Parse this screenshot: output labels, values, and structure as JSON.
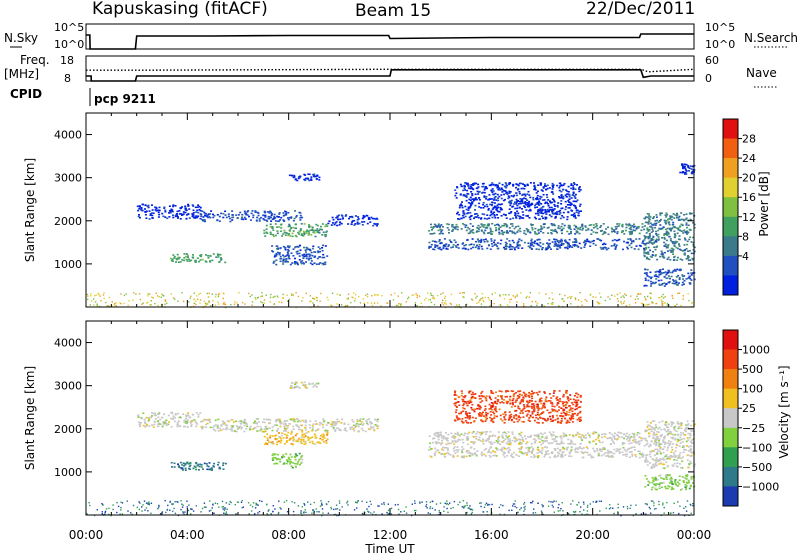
{
  "header": {
    "station": "Kapuskasing (fitACF)",
    "beam": "Beam 15",
    "date": "22/Dec/2011"
  },
  "chart_data": [
    {
      "type": "line",
      "panel": "noise",
      "left_label": "N.Sky",
      "right_label": "N.Search",
      "left_ticks": [
        "10^5",
        "10^0"
      ],
      "right_ticks": [
        "10^5",
        "10^0"
      ],
      "series": [
        {
          "name": "N.Sky",
          "x": [
            0.0,
            0.15,
            0.16,
            0.35,
            0.4,
            1.95,
            2.0,
            5.0,
            8.0,
            11.95,
            12.0,
            16.0,
            21.85,
            21.9,
            24.0
          ],
          "y": [
            2.8,
            2.8,
            0.0,
            0.0,
            0.0,
            0.0,
            2.6,
            2.6,
            2.7,
            2.7,
            2.1,
            2.3,
            2.3,
            3.0,
            3.0
          ]
        }
      ],
      "xlim": [
        0,
        24
      ]
    },
    {
      "type": "line",
      "panel": "frequency",
      "left_label": "Freq.",
      "left_unit": "[MHz]",
      "right_label": "Nave",
      "left_ticks": [
        "18",
        "8"
      ],
      "right_ticks": [
        "60",
        "0"
      ],
      "series": [
        {
          "name": "Freq.",
          "x": [
            0.0,
            0.2,
            0.21,
            1.95,
            2.0,
            12.0,
            12.05,
            21.9,
            22.0,
            22.3,
            24.0
          ],
          "y": [
            10,
            10,
            8,
            8,
            10,
            10,
            12.5,
            12.5,
            9.5,
            10,
            10
          ]
        },
        {
          "name": "Nave",
          "x": [
            0.0,
            2.0,
            12.0,
            21.9,
            22.2,
            24.0
          ],
          "y": [
            26,
            26,
            28,
            28,
            22,
            28
          ]
        }
      ],
      "xlim": [
        0,
        24
      ]
    },
    {
      "type": "table",
      "panel": "cpid",
      "label": "CPID",
      "value": "pcp 9211"
    },
    {
      "type": "heatmap",
      "panel": "power",
      "ylabel": "Slant Range [km]",
      "xlim": [
        0,
        24
      ],
      "ylim": [
        0,
        4500
      ],
      "yticks": [
        "1000",
        "2000",
        "3000",
        "4000"
      ],
      "colorbar": {
        "label": "Power [dB]",
        "ticks": [
          "4",
          "8",
          "12",
          "16",
          "20",
          "24",
          "28"
        ],
        "colors": [
          "#0020e0",
          "#2050c0",
          "#3a7a8a",
          "#40a060",
          "#80c040",
          "#e0d030",
          "#f0a020",
          "#f06010",
          "#e01010"
        ]
      },
      "regions": [
        {
          "t0": 2.0,
          "t1": 4.5,
          "r0": 2050,
          "r1": 2400,
          "v": 4
        },
        {
          "t0": 4.5,
          "t1": 8.5,
          "r0": 2000,
          "r1": 2250,
          "v": 6
        },
        {
          "t0": 7.0,
          "t1": 9.5,
          "r0": 1650,
          "r1": 1950,
          "v": 14
        },
        {
          "t0": 9.5,
          "t1": 11.5,
          "r0": 1900,
          "r1": 2150,
          "v": 4
        },
        {
          "t0": 3.3,
          "t1": 5.5,
          "r0": 1050,
          "r1": 1250,
          "v": 14
        },
        {
          "t0": 8.0,
          "t1": 9.2,
          "r0": 2950,
          "r1": 3100,
          "v": 4
        },
        {
          "t0": 7.3,
          "t1": 9.5,
          "r0": 1000,
          "r1": 1450,
          "v": 6
        },
        {
          "t0": 13.5,
          "t1": 22.0,
          "r0": 1700,
          "r1": 1950,
          "v": 12
        },
        {
          "t0": 13.5,
          "t1": 22.0,
          "r0": 1350,
          "r1": 1600,
          "v": 8
        },
        {
          "t0": 14.5,
          "t1": 19.5,
          "r0": 2050,
          "r1": 2900,
          "v": 4
        },
        {
          "t0": 22.0,
          "t1": 24.0,
          "r0": 1100,
          "r1": 2200,
          "v": 10
        },
        {
          "t0": 22.0,
          "t1": 24.0,
          "r0": 500,
          "r1": 900,
          "v": 8
        },
        {
          "t0": 23.4,
          "t1": 24.0,
          "r0": 3100,
          "r1": 3350,
          "v": 4
        }
      ]
    },
    {
      "type": "heatmap",
      "panel": "velocity",
      "ylabel": "Slant Range [km]",
      "xlabel": "Time UT",
      "xlim": [
        0,
        24
      ],
      "ylim": [
        0,
        4500
      ],
      "xticks": [
        "00:00",
        "04:00",
        "08:00",
        "12:00",
        "16:00",
        "20:00",
        "00:00"
      ],
      "yticks": [
        "1000",
        "2000",
        "3000",
        "4000"
      ],
      "colorbar": {
        "label": "Velocity [m s⁻¹]",
        "ticks": [
          "1000",
          "500",
          "100",
          "25",
          "−25",
          "−100",
          "−500",
          "−1000"
        ],
        "colors": [
          "#1a3cb0",
          "#2e7a8a",
          "#30a050",
          "#80d040",
          "#c8c8c8",
          "#f0c020",
          "#f08010",
          "#f04010",
          "#e01010"
        ]
      },
      "regions": [
        {
          "t0": 2.0,
          "t1": 4.5,
          "r0": 2050,
          "r1": 2400,
          "c": 4
        },
        {
          "t0": 4.5,
          "t1": 11.5,
          "r0": 1950,
          "r1": 2250,
          "c": 4
        },
        {
          "t0": 7.0,
          "t1": 9.5,
          "r0": 1650,
          "r1": 1950,
          "c": 5
        },
        {
          "t0": 3.3,
          "t1": 5.5,
          "r0": 1050,
          "r1": 1250,
          "c": 1
        },
        {
          "t0": 8.0,
          "t1": 9.2,
          "r0": 2950,
          "r1": 3100,
          "c": 4
        },
        {
          "t0": 7.3,
          "t1": 8.5,
          "r0": 1100,
          "r1": 1450,
          "c": 3
        },
        {
          "t0": 13.5,
          "t1": 22.0,
          "r0": 1650,
          "r1": 1950,
          "c": 4
        },
        {
          "t0": 13.5,
          "t1": 22.0,
          "r0": 1350,
          "r1": 1600,
          "c": 4
        },
        {
          "t0": 14.5,
          "t1": 19.5,
          "r0": 2150,
          "r1": 2900,
          "c": 7
        },
        {
          "t0": 22.0,
          "t1": 24.0,
          "r0": 1100,
          "r1": 2200,
          "c": 4
        },
        {
          "t0": 22.0,
          "t1": 24.0,
          "r0": 600,
          "r1": 950,
          "c": 3
        }
      ]
    }
  ]
}
